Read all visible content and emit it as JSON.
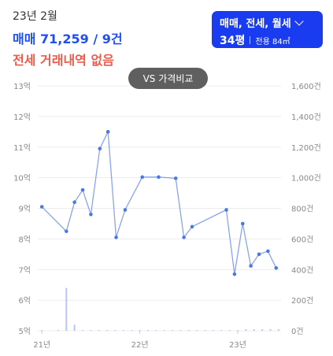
{
  "header": {
    "date": "23년 2월",
    "sale_summary": "매매 71,259 / 9건",
    "jeonse_summary": "전세 거래내역 없음"
  },
  "type_selector": {
    "types_label": "매매, 전세, 월세",
    "pyeong_label": "34평",
    "area_label": "전용 84㎡"
  },
  "vs_button": {
    "label": "VS 가격비교"
  },
  "colors": {
    "sale_accent": "#1f4ef5",
    "jeonse_accent": "#ef5b4b",
    "line": "#8aa3f0",
    "point": "#4a78e6",
    "volume_bar": "#b7c6f5",
    "selector_bg": "#1a3cf0",
    "button_bg": "#5f5f5f"
  },
  "icons": {
    "dropdown": "chevron-down-icon"
  },
  "chart_data": {
    "type": "line",
    "x_axis": {
      "ticks": [
        {
          "label": "21년",
          "t": 0
        },
        {
          "label": "22년",
          "t": 12
        },
        {
          "label": "23년",
          "t": 24
        }
      ],
      "range_months": [
        -0.5,
        29.3
      ]
    },
    "y_axis_left": {
      "unit_label": "억",
      "ticks": [
        "13억",
        "12억",
        "11억",
        "10억",
        "9억",
        "8억",
        "7억",
        "6억",
        "5억"
      ],
      "range": [
        5,
        13
      ]
    },
    "y_axis_right": {
      "ticks": [
        "1,600건",
        "1,400건",
        "1,200건",
        "1,000건",
        "800건",
        "600건",
        "400건",
        "200건",
        "0건"
      ],
      "range": [
        0,
        1600
      ]
    },
    "grid": true,
    "series": [
      {
        "points": [
          [
            0.0,
            9.05
          ],
          [
            3.0,
            8.25
          ],
          [
            4.0,
            9.2
          ],
          [
            5.0,
            9.6
          ],
          [
            6.0,
            8.8
          ],
          [
            7.1,
            10.95
          ],
          [
            8.1,
            11.5
          ],
          [
            9.1,
            8.05
          ],
          [
            10.2,
            8.95
          ],
          [
            12.3,
            10.02
          ],
          [
            14.3,
            10.02
          ],
          [
            16.4,
            9.98
          ],
          [
            17.4,
            8.05
          ],
          [
            18.4,
            8.4
          ],
          [
            22.6,
            8.95
          ],
          [
            23.6,
            6.85
          ],
          [
            24.6,
            8.5
          ],
          [
            25.6,
            7.12
          ],
          [
            26.6,
            7.5
          ],
          [
            27.7,
            7.6
          ],
          [
            28.7,
            7.05
          ]
        ]
      }
    ],
    "volume_bars": [
      [
        0,
        5
      ],
      [
        2,
        5
      ],
      [
        3,
        280
      ],
      [
        4,
        40
      ],
      [
        5,
        5
      ],
      [
        6,
        5
      ],
      [
        7,
        5
      ],
      [
        8,
        5
      ],
      [
        9,
        5
      ],
      [
        10,
        5
      ],
      [
        11,
        5
      ],
      [
        12,
        5
      ],
      [
        13,
        5
      ],
      [
        14,
        5
      ],
      [
        15,
        5
      ],
      [
        16,
        5
      ],
      [
        17,
        5
      ],
      [
        18,
        5
      ],
      [
        19,
        5
      ],
      [
        20,
        5
      ],
      [
        21,
        5
      ],
      [
        22,
        5
      ],
      [
        23,
        5
      ],
      [
        24,
        5
      ],
      [
        25,
        10
      ],
      [
        26,
        10
      ],
      [
        27,
        10
      ],
      [
        28,
        10
      ],
      [
        29,
        10
      ]
    ]
  }
}
